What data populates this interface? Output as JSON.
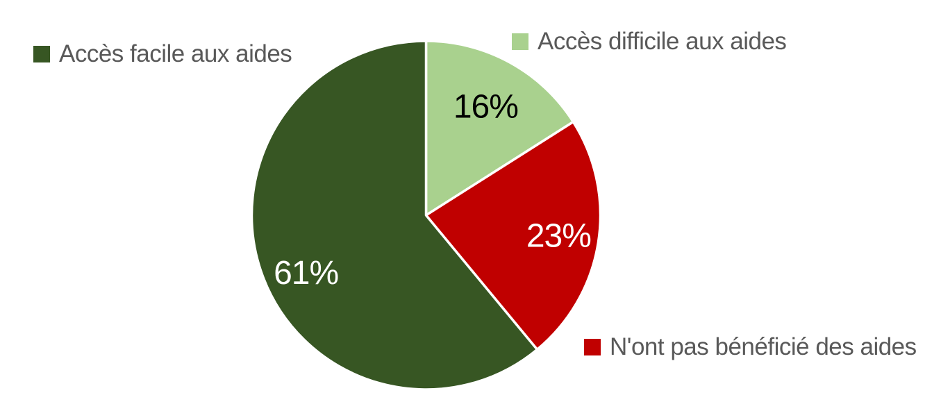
{
  "chart_data": {
    "type": "pie",
    "title": "",
    "unit": "%",
    "direction": "clockwise",
    "start_angle_deg": 0,
    "slices": [
      {
        "label": "Accès difficile aux aides",
        "value": 16,
        "color": "#A9D18E",
        "label_color": "#000000",
        "data_label": "16%"
      },
      {
        "label": "N'ont pas bénéficié des aides",
        "value": 23,
        "color": "#C00000",
        "label_color": "#FFFFFF",
        "data_label": "23%"
      },
      {
        "label": "Accès facile aux aides",
        "value": 61,
        "color": "#375623",
        "label_color": "#FFFFFF",
        "data_label": "61%"
      }
    ],
    "slice_border_color": "#FFFFFF",
    "legend": {
      "text_color": "#595959",
      "items": [
        {
          "label": "Accès facile aux aides",
          "color": "#375623",
          "position": "top-left"
        },
        {
          "label": "Accès difficile aux aides",
          "color": "#A9D18E",
          "position": "top-right"
        },
        {
          "label": "N'ont pas bénéficié des aides",
          "color": "#C00000",
          "position": "bottom-right"
        }
      ]
    }
  }
}
